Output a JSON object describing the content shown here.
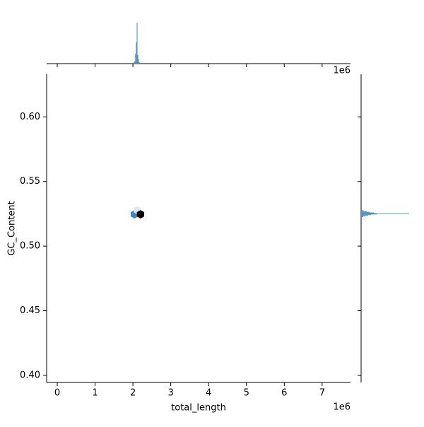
{
  "chart_data": [
    {
      "type": "hexbin",
      "xlabel": "total_length",
      "ylabel": "GC_Content",
      "x_offset": "1e6",
      "x": [
        2040000,
        2120000,
        2200000
      ],
      "y": [
        0.5246,
        0.5278,
        0.5246
      ],
      "values": [
        3,
        1,
        8
      ],
      "colors": [
        "#3a87c8",
        "#dbe9f6",
        "#000000"
      ],
      "xlim": [
        -280000,
        7750000
      ],
      "ylim": [
        0.3945,
        0.633
      ],
      "xticks": [
        {
          "value": 0,
          "label": "0"
        },
        {
          "value": 1000000,
          "label": "1"
        },
        {
          "value": 2000000,
          "label": "2"
        },
        {
          "value": 3000000,
          "label": "3"
        },
        {
          "value": 4000000,
          "label": "4"
        },
        {
          "value": 5000000,
          "label": "5"
        },
        {
          "value": 6000000,
          "label": "6"
        },
        {
          "value": 7000000,
          "label": "7"
        }
      ],
      "yticks": [
        {
          "value": 0.4,
          "label": "0.40"
        },
        {
          "value": 0.45,
          "label": "0.45"
        },
        {
          "value": 0.5,
          "label": "0.50"
        },
        {
          "value": 0.55,
          "label": "0.55"
        },
        {
          "value": 0.6,
          "label": "0.60"
        }
      ]
    },
    {
      "type": "histogram",
      "color": "#4f8fc0",
      "bins": [
        2000000,
        2020000,
        2040000,
        2060000,
        2080000,
        2100000,
        2120000,
        2140000,
        2160000,
        2180000,
        2200000
      ],
      "values": [
        1,
        2,
        4,
        14,
        30,
        58,
        12,
        6,
        2,
        1
      ],
      "ylim": [
        0,
        62
      ]
    },
    {
      "type": "histogram",
      "orientation": "horizontal",
      "color": "#4f8fc0",
      "bins": [
        0.522,
        0.5225,
        0.523,
        0.5235,
        0.524,
        0.5245,
        0.525,
        0.5255,
        0.526,
        0.5265,
        0.527,
        0.5275,
        0.528
      ],
      "values": [
        1,
        3,
        6,
        10,
        14,
        22,
        68,
        18,
        12,
        8,
        4,
        2
      ],
      "xlim": [
        0,
        70
      ]
    }
  ]
}
